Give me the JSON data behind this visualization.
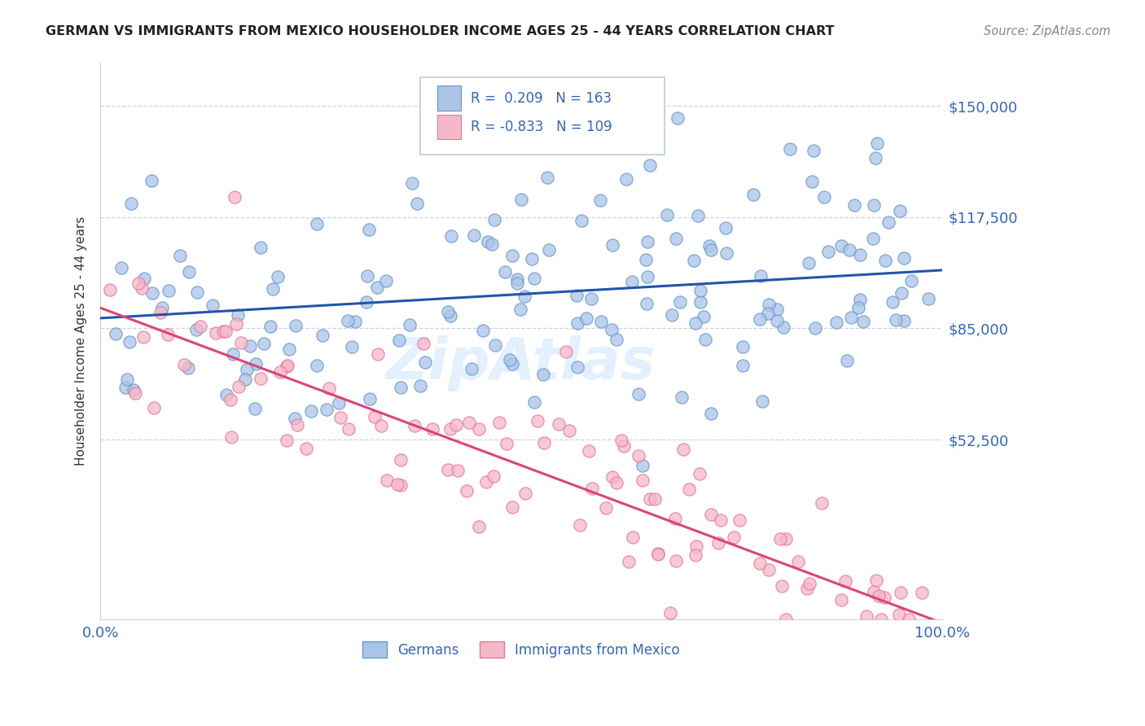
{
  "title": "GERMAN VS IMMIGRANTS FROM MEXICO HOUSEHOLDER INCOME AGES 25 - 44 YEARS CORRELATION CHART",
  "source": "Source: ZipAtlas.com",
  "ylabel": "Householder Income Ages 25 - 44 years",
  "xlim": [
    0,
    1
  ],
  "ylim": [
    0,
    162500
  ],
  "ytick_vals": [
    52500,
    85000,
    117500,
    150000
  ],
  "ytick_labels": [
    "$52,500",
    "$85,000",
    "$117,500",
    "$150,000"
  ],
  "xtick_vals": [
    0,
    1
  ],
  "xtick_labels": [
    "0.0%",
    "100.0%"
  ],
  "blue_R": 0.209,
  "blue_N": 163,
  "pink_R": -0.833,
  "pink_N": 109,
  "blue_fill_color": "#aac4e8",
  "blue_edge_color": "#6699cc",
  "pink_fill_color": "#f5b8c8",
  "pink_edge_color": "#e87898",
  "blue_line_color": "#2255aa",
  "pink_line_color": "#dd4477",
  "axis_color": "#3366bb",
  "legend_label_blue": "Germans",
  "legend_label_pink": "Immigrants from Mexico",
  "watermark": "ZipAtlas",
  "watermark_color": "#ddeeff",
  "grid_color": "#ccccdd",
  "title_color": "#222222",
  "source_color": "#888888",
  "blue_line_intercept": 88000,
  "blue_line_slope": 14000,
  "pink_line_intercept": 91000,
  "pink_line_slope": -92000
}
